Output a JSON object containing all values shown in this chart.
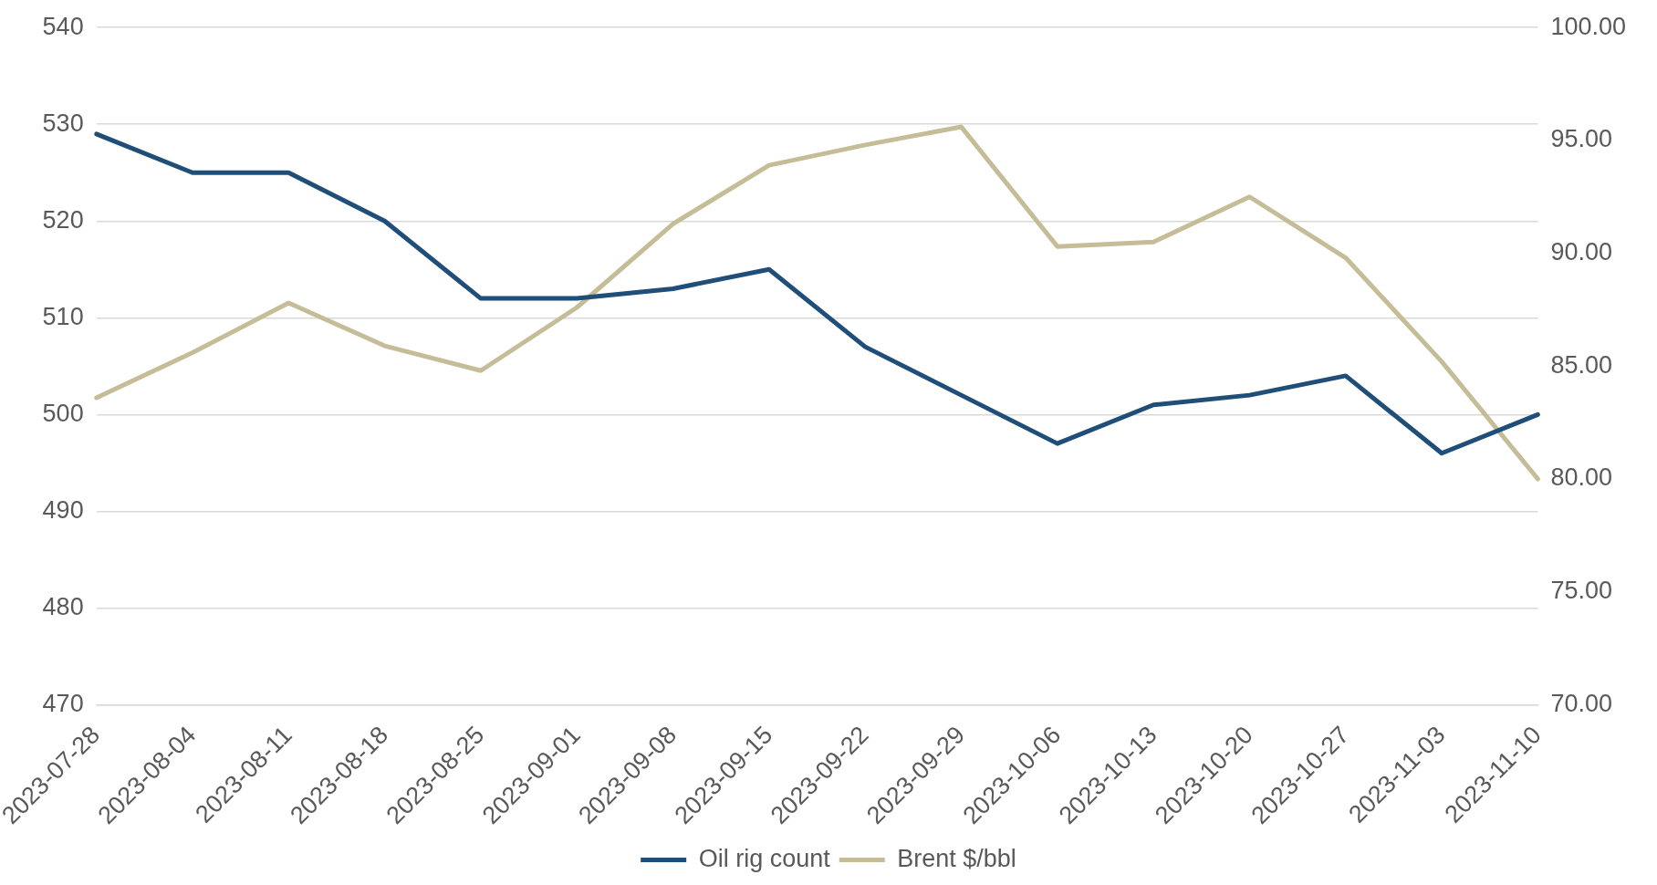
{
  "chart_data": {
    "type": "line",
    "categories": [
      "2023-07-28",
      "2023-08-04",
      "2023-08-11",
      "2023-08-18",
      "2023-08-25",
      "2023-09-01",
      "2023-09-08",
      "2023-09-15",
      "2023-09-22",
      "2023-09-29",
      "2023-10-06",
      "2023-10-13",
      "2023-10-20",
      "2023-10-27",
      "2023-11-03",
      "2023-11-10"
    ],
    "series": [
      {
        "name": "Oil rig count",
        "color": "#1f4e79",
        "values": [
          529,
          525,
          525,
          520,
          512,
          512,
          513,
          515,
          507,
          502,
          497,
          501,
          502,
          504,
          496,
          500
        ]
      },
      {
        "name": "Brent $/bbl",
        "color": "#c4bd97",
        "axis": "y2",
        "values": [
          83.6,
          85.6,
          87.8,
          85.9,
          84.8,
          87.6,
          91.3,
          93.9,
          94.8,
          95.6,
          90.3,
          90.5,
          92.5,
          89.8,
          85.2,
          80.0
        ]
      }
    ],
    "ylim": [
      470,
      540
    ],
    "yticks": [
      470,
      480,
      490,
      500,
      510,
      520,
      530,
      540
    ],
    "y2lim": [
      70,
      100
    ],
    "y2ticks": [
      {
        "value": 70,
        "label": "70.00"
      },
      {
        "value": 75,
        "label": "75.00"
      },
      {
        "value": 80,
        "label": "80.00"
      },
      {
        "value": 85,
        "label": "85.00"
      },
      {
        "value": 90,
        "label": "90.00"
      },
      {
        "value": 95,
        "label": "95.00"
      },
      {
        "value": 100,
        "label": "100.00"
      }
    ],
    "grid": "y",
    "legend": "bottom",
    "marker": "none",
    "line_style": "solid"
  }
}
